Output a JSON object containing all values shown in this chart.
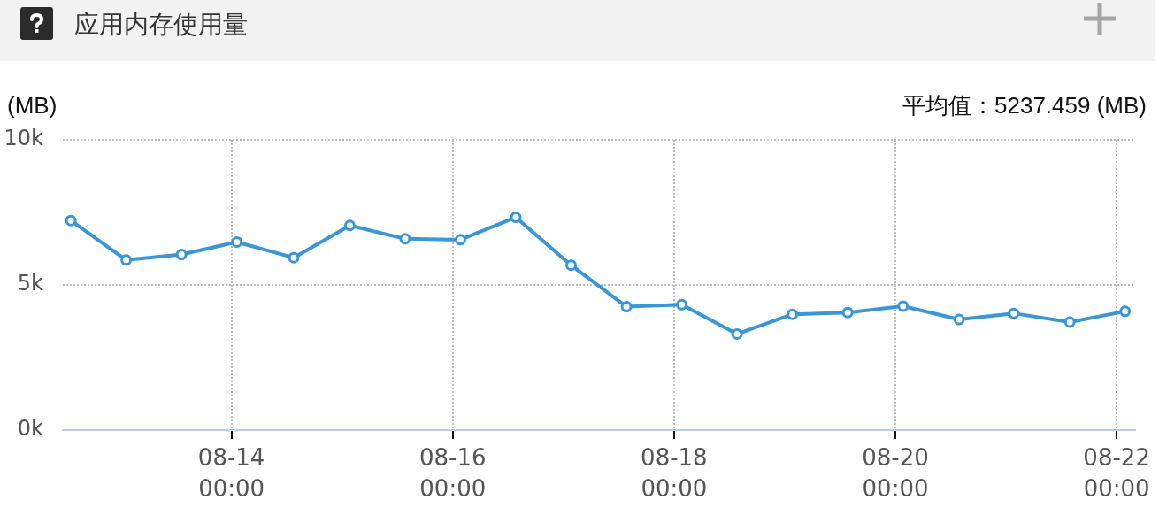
{
  "chart_data": {
    "type": "line",
    "title": "应用内存使用量",
    "ylabel": "(MB)",
    "annotations": [
      "平均值：5237.459 (MB)"
    ],
    "x": [
      "--08-12T13:10",
      "--08-13T01:10",
      "--08-13T13:10",
      "--08-14T01:10",
      "--08-14T13:30",
      "--08-15T01:40",
      "--08-15T13:40",
      "--08-16T01:40",
      "--08-16T13:40",
      "--08-17T01:40",
      "--08-17T13:40",
      "--08-18T01:40",
      "--08-18T13:40",
      "--08-19T01:40",
      "--08-19T13:40",
      "--08-20T01:40",
      "--08-20T13:50",
      "--08-21T01:40",
      "--08-21T13:50",
      "--08-22T01:50"
    ],
    "series": [
      {
        "color": "#3a96d6",
        "values": [
          7220,
          5860,
          6050,
          6480,
          5940,
          7050,
          6590,
          6560,
          7330,
          5680,
          4250,
          4320,
          3310,
          3990,
          4050,
          4270,
          3810,
          4020,
          3720,
          4090
        ]
      }
    ],
    "xlim": [
      "--08-12T11:25",
      "--08-22T04:00"
    ],
    "xticks": [
      {
        "value": "--08-14T00:00",
        "label": "08-14\n00:00"
      },
      {
        "value": "--08-16T00:00",
        "label": "08-16\n00:00"
      },
      {
        "value": "--08-18T00:00",
        "label": "08-18\n00:00"
      },
      {
        "value": "--08-20T00:00",
        "label": "08-20\n00:00"
      },
      {
        "value": "--08-22T00:00",
        "label": "08-22\n00:00"
      }
    ],
    "ylim": [
      0,
      10000
    ],
    "yticks": [
      {
        "value": 0,
        "label": "0k"
      },
      {
        "value": 5000,
        "label": "5k"
      },
      {
        "value": 10000,
        "label": "10k"
      }
    ],
    "grid": true,
    "marker": "circle",
    "line_style": "solid"
  }
}
